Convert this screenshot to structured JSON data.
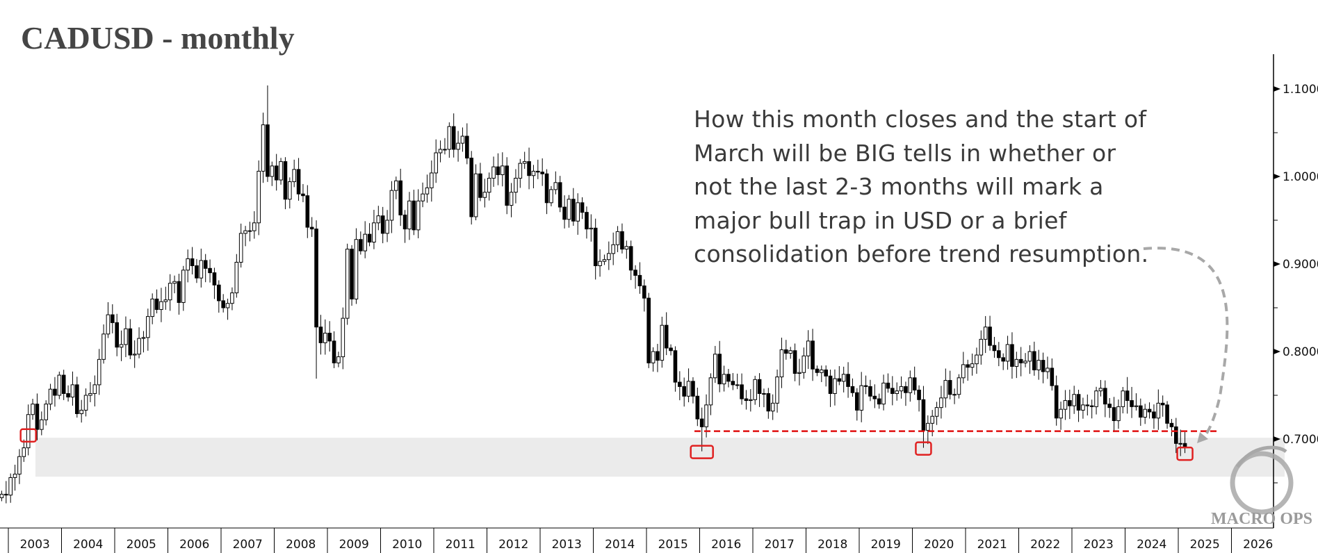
{
  "title": "CADUSD - monthly",
  "annotation": [
    "How this month closes and the start of",
    "March will be BIG tells in whether or",
    "not the last 2-3 months will mark a",
    "major bull trap in USD or a brief",
    "consolidation before trend resumption."
  ],
  "logo": "MACRO OPS",
  "colors": {
    "support_line": "#e01010",
    "highlight_box": "#e02020",
    "support_zone": "#ebebeb",
    "candle_down": "#000000",
    "candle_up": "#ffffff",
    "arrow": "#a8a8a8"
  },
  "chart_data": {
    "type": "candlestick",
    "title": "CADUSD - monthly",
    "ylim": [
      0.6,
      1.14
    ],
    "yticks": [
      "1.1000",
      "1.0000",
      "0.9000",
      "0.8000",
      "0.7000"
    ],
    "ytick_values": [
      1.1,
      1.0,
      0.9,
      0.8,
      0.7
    ],
    "years": [
      "2003",
      "2004",
      "2005",
      "2006",
      "2007",
      "2008",
      "2009",
      "2010",
      "2011",
      "2012",
      "2013",
      "2014",
      "2015",
      "2016",
      "2017",
      "2018",
      "2019",
      "2020",
      "2021",
      "2022",
      "2023",
      "2024",
      "2025",
      "2026"
    ],
    "start_month": "2002-11",
    "monthly_close": [
      0.637,
      0.636,
      0.656,
      0.66,
      0.68,
      0.69,
      0.728,
      0.74,
      0.711,
      0.722,
      0.74,
      0.757,
      0.75,
      0.773,
      0.752,
      0.748,
      0.762,
      0.729,
      0.733,
      0.75,
      0.752,
      0.762,
      0.791,
      0.82,
      0.842,
      0.833,
      0.805,
      0.808,
      0.826,
      0.796,
      0.797,
      0.815,
      0.816,
      0.84,
      0.86,
      0.848,
      0.857,
      0.859,
      0.878,
      0.88,
      0.856,
      0.893,
      0.906,
      0.898,
      0.884,
      0.904,
      0.895,
      0.89,
      0.876,
      0.858,
      0.85,
      0.855,
      0.867,
      0.902,
      0.935,
      0.938,
      0.938,
      0.947,
      1.006,
      1.059,
      1.0,
      1.012,
      0.996,
      1.017,
      0.974,
      0.994,
      1.008,
      0.98,
      0.978,
      0.942,
      0.94,
      0.828,
      0.81,
      0.821,
      0.812,
      0.787,
      0.794,
      0.838,
      0.917,
      0.86,
      0.928,
      0.915,
      0.934,
      0.925,
      0.947,
      0.955,
      0.935,
      0.95,
      0.984,
      0.995,
      0.956,
      0.94,
      0.972,
      0.939,
      0.972,
      0.98,
      0.987,
      1.004,
      1.027,
      1.031,
      1.031,
      1.057,
      1.031,
      1.038,
      1.046,
      1.021,
      0.954,
      1.003,
      0.976,
      0.982,
      0.998,
      1.011,
      1.002,
      1.012,
      0.967,
      0.982,
      0.998,
      1.015,
      1.017,
      1.001,
      1.006,
      1.005,
      1.003,
      0.97,
      0.985,
      0.993,
      0.965,
      0.951,
      0.974,
      0.949,
      0.97,
      0.959,
      0.94,
      0.941,
      0.898,
      0.903,
      0.905,
      0.912,
      0.922,
      0.937,
      0.917,
      0.92,
      0.893,
      0.887,
      0.875,
      0.861,
      0.787,
      0.8,
      0.79,
      0.83,
      0.804,
      0.801,
      0.765,
      0.76,
      0.749,
      0.766,
      0.749,
      0.723,
      0.714,
      0.739,
      0.77,
      0.797,
      0.763,
      0.774,
      0.766,
      0.762,
      0.762,
      0.746,
      0.744,
      0.745,
      0.768,
      0.752,
      0.752,
      0.732,
      0.741,
      0.771,
      0.802,
      0.798,
      0.801,
      0.775,
      0.776,
      0.795,
      0.812,
      0.78,
      0.776,
      0.779,
      0.772,
      0.752,
      0.769,
      0.766,
      0.774,
      0.76,
      0.753,
      0.733,
      0.761,
      0.76,
      0.749,
      0.746,
      0.74,
      0.764,
      0.758,
      0.752,
      0.755,
      0.76,
      0.753,
      0.77,
      0.756,
      0.745,
      0.71,
      0.718,
      0.726,
      0.736,
      0.747,
      0.767,
      0.751,
      0.751,
      0.77,
      0.785,
      0.782,
      0.786,
      0.796,
      0.814,
      0.828,
      0.807,
      0.801,
      0.793,
      0.789,
      0.808,
      0.783,
      0.791,
      0.787,
      0.789,
      0.8,
      0.779,
      0.79,
      0.777,
      0.781,
      0.761,
      0.724,
      0.734,
      0.744,
      0.738,
      0.751,
      0.733,
      0.739,
      0.738,
      0.737,
      0.755,
      0.758,
      0.74,
      0.736,
      0.721,
      0.737,
      0.755,
      0.744,
      0.737,
      0.738,
      0.725,
      0.734,
      0.731,
      0.724,
      0.741,
      0.739,
      0.718,
      0.714,
      0.695,
      0.695,
      0.691
    ],
    "notable_extremes": {
      "2007-11": {
        "high": 1.104
      },
      "2008-10": {
        "low": 0.769
      },
      "2016-01": {
        "low": 0.686
      },
      "2020-03": {
        "low": 0.69
      },
      "2025-02": {
        "low": 0.684
      }
    },
    "support_level": 0.709,
    "support_zone": [
      0.657,
      0.7015
    ],
    "highlighted_lows": [
      "2003-05",
      "2016-01",
      "2020-03",
      "2025-02"
    ]
  }
}
